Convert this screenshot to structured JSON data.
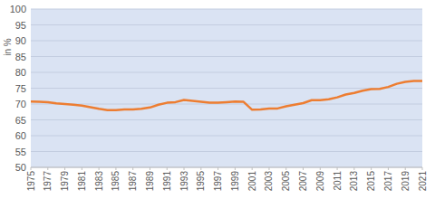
{
  "chart_data": {
    "type": "line",
    "y_label": "in %",
    "x": [
      1975,
      1976,
      1977,
      1978,
      1979,
      1980,
      1981,
      1982,
      1983,
      1984,
      1985,
      1986,
      1987,
      1988,
      1989,
      1990,
      1991,
      1992,
      1993,
      1994,
      1995,
      1996,
      1997,
      1998,
      1999,
      2000,
      2001,
      2002,
      2003,
      2004,
      2005,
      2006,
      2007,
      2008,
      2009,
      2010,
      2011,
      2012,
      2013,
      2014,
      2015,
      2016,
      2017,
      2018,
      2019,
      2020,
      2021
    ],
    "values": [
      70.8,
      70.7,
      70.6,
      70.2,
      70.0,
      69.8,
      69.5,
      69.0,
      68.5,
      68.1,
      68.1,
      68.3,
      68.3,
      68.5,
      68.9,
      69.8,
      70.4,
      70.6,
      71.3,
      71.0,
      70.7,
      70.4,
      70.4,
      70.6,
      70.8,
      70.7,
      68.2,
      68.3,
      68.6,
      68.6,
      69.3,
      69.8,
      70.3,
      71.2,
      71.2,
      71.5,
      72.1,
      73.0,
      73.5,
      74.2,
      74.7,
      74.8,
      75.4,
      76.4,
      77.0,
      77.3,
      77.3
    ],
    "color": "#ed7d31",
    "xlim": [
      1975,
      2021
    ],
    "xticks": [
      1975,
      1977,
      1979,
      1981,
      1983,
      1985,
      1987,
      1989,
      1991,
      1993,
      1995,
      1997,
      1999,
      2001,
      2003,
      2005,
      2007,
      2009,
      2011,
      2013,
      2015,
      2017,
      2019,
      2021
    ],
    "ylim": [
      50,
      100
    ],
    "yticks": [
      50,
      55,
      60,
      65,
      70,
      75,
      80,
      85,
      90,
      95,
      100
    ],
    "grid": true
  }
}
